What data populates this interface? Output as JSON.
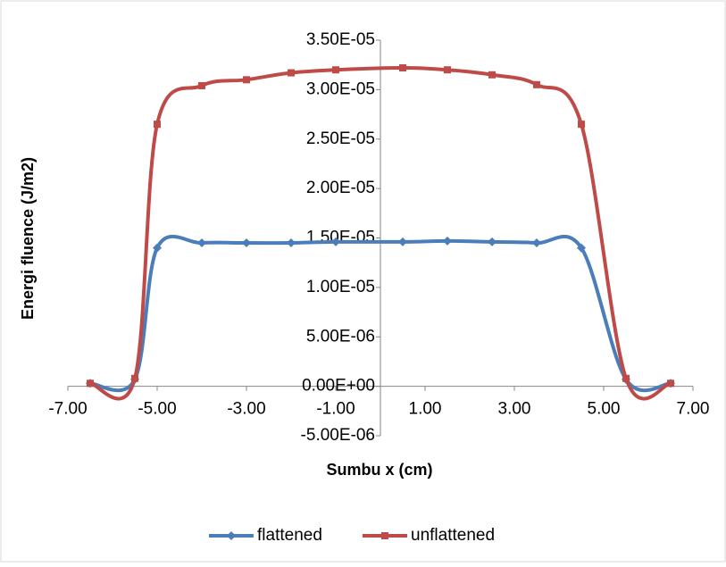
{
  "chart_data": {
    "type": "line",
    "xlabel": "Sumbu x (cm)",
    "ylabel": "Energi fluence (J/m2)",
    "x": [
      -6.5,
      -5.5,
      -5,
      -4,
      -3,
      -2,
      -1,
      0.5,
      1.5,
      2.5,
      3.5,
      4.5,
      5.5,
      6.5
    ],
    "series": [
      {
        "name": "flattened",
        "color": "#4a7ebb",
        "marker": "diamond",
        "values": [
          3e-07,
          7e-07,
          1.4e-05,
          1.45e-05,
          1.45e-05,
          1.45e-05,
          1.46e-05,
          1.46e-05,
          1.47e-05,
          1.46e-05,
          1.45e-05,
          1.4e-05,
          7e-07,
          3e-07
        ]
      },
      {
        "name": "unflattened",
        "color": "#be4b48",
        "marker": "square",
        "values": [
          3e-07,
          8e-07,
          2.65e-05,
          3.04e-05,
          3.1e-05,
          3.17e-05,
          3.2e-05,
          3.22e-05,
          3.2e-05,
          3.15e-05,
          3.05e-05,
          2.65e-05,
          8e-07,
          3e-07
        ]
      }
    ],
    "xlim": [
      -7,
      7
    ],
    "xticks": [
      {
        "value": -7,
        "label": "-7.00"
      },
      {
        "value": -5,
        "label": "-5.00"
      },
      {
        "value": -3,
        "label": "-3.00"
      },
      {
        "value": -1,
        "label": "-1.00"
      },
      {
        "value": 1,
        "label": "1.00"
      },
      {
        "value": 3,
        "label": "3.00"
      },
      {
        "value": 5,
        "label": "5.00"
      },
      {
        "value": 7,
        "label": "7.00"
      }
    ],
    "ylim": [
      -5e-06,
      3.5e-05
    ],
    "yticks": [
      {
        "value": -5e-06,
        "label": "-5.00E-06"
      },
      {
        "value": 0,
        "label": "0.00E+00"
      },
      {
        "value": 5e-06,
        "label": "5.00E-06"
      },
      {
        "value": 1e-05,
        "label": "1.00E-05"
      },
      {
        "value": 1.5e-05,
        "label": "1.50E-05"
      },
      {
        "value": 2e-05,
        "label": "2.00E-05"
      },
      {
        "value": 2.5e-05,
        "label": "2.50E-05"
      },
      {
        "value": 3e-05,
        "label": "3.00E-05"
      },
      {
        "value": 3.5e-05,
        "label": "3.50E-05"
      }
    ],
    "legend": "bottom"
  }
}
